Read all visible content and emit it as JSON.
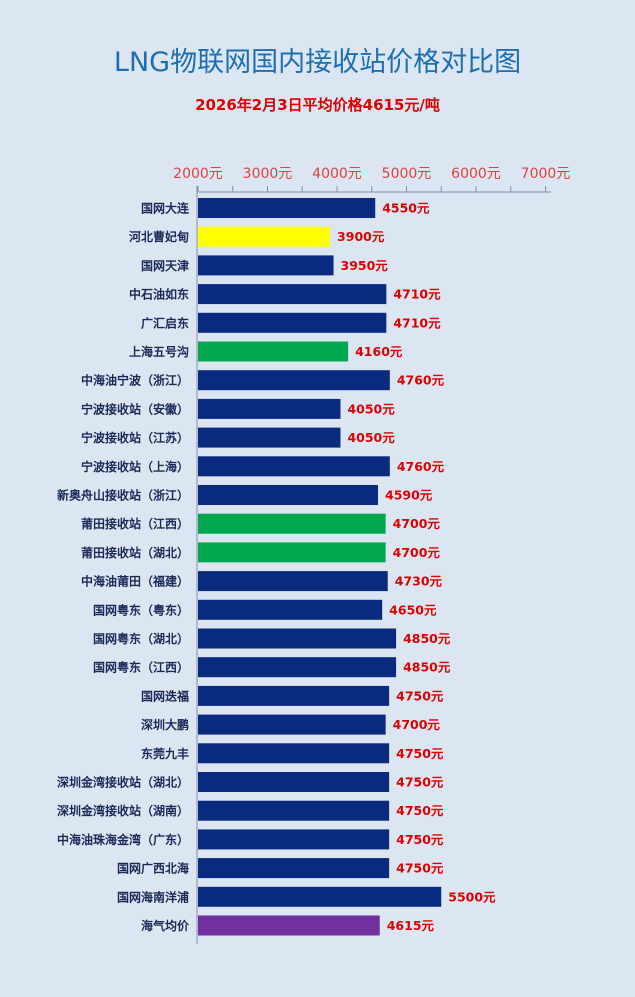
{
  "title": "LNG物联网国内接收站价格对比图",
  "subtitle": "2026年2月3日平均价格4615元/吨",
  "colors": {
    "navy": "#0a2a80",
    "yellow": "#ffff00",
    "green": "#00a850",
    "purple": "#7030a0",
    "value_label": "#e00000",
    "tick_label": "#e04040",
    "category_label": "#1c2a5a"
  },
  "chart_data": {
    "type": "bar",
    "orientation": "horizontal",
    "xlim": [
      1000,
      7500
    ],
    "ticks": [
      2000,
      3000,
      4000,
      5000,
      6000,
      7000
    ],
    "tick_labels": [
      "2000元",
      "3000元",
      "4000元",
      "5000元",
      "6000元",
      "7000元"
    ],
    "axis_position": "top",
    "grid": false,
    "categories": [
      "国网大连",
      "河北曹妃甸",
      "国网天津",
      "中石油如东",
      "广汇启东",
      "上海五号沟",
      "中海油宁波（浙江）",
      "宁波接收站（安徽）",
      "宁波接收站（江苏）",
      "宁波接收站（上海）",
      "新奥舟山接收站（浙江）",
      "莆田接收站（江西）",
      "莆田接收站（湖北）",
      "中海油莆田（福建）",
      "国网粤东（粤东）",
      "国网粤东（湖北）",
      "国网粤东（江西）",
      "国网迭福",
      "深圳大鹏",
      "东莞九丰",
      "深圳金湾接收站（湖北）",
      "深圳金湾接收站（湖南）",
      "中海油珠海金湾（广东）",
      "国网广西北海",
      "国网海南洋浦",
      "海气均价"
    ],
    "values": [
      4550,
      3900,
      3950,
      4710,
      4710,
      4160,
      4760,
      4050,
      4050,
      4760,
      4590,
      4700,
      4700,
      4730,
      4650,
      4850,
      4850,
      4750,
      4700,
      4750,
      4750,
      4750,
      4750,
      4750,
      5500,
      4615
    ],
    "value_labels": [
      "4550元",
      "3900元",
      "3950元",
      "4710元",
      "4710元",
      "4160元",
      "4760元",
      "4050元",
      "4050元",
      "4760元",
      "4590元",
      "4700元",
      "4700元",
      "4730元",
      "4650元",
      "4850元",
      "4850元",
      "4750元",
      "4700元",
      "4750元",
      "4750元",
      "4750元",
      "4750元",
      "4750元",
      "5500元",
      "4615元"
    ],
    "bar_colors": [
      "navy",
      "yellow",
      "navy",
      "navy",
      "navy",
      "green",
      "navy",
      "navy",
      "navy",
      "navy",
      "navy",
      "green",
      "green",
      "navy",
      "navy",
      "navy",
      "navy",
      "navy",
      "navy",
      "navy",
      "navy",
      "navy",
      "navy",
      "navy",
      "navy",
      "purple"
    ]
  }
}
